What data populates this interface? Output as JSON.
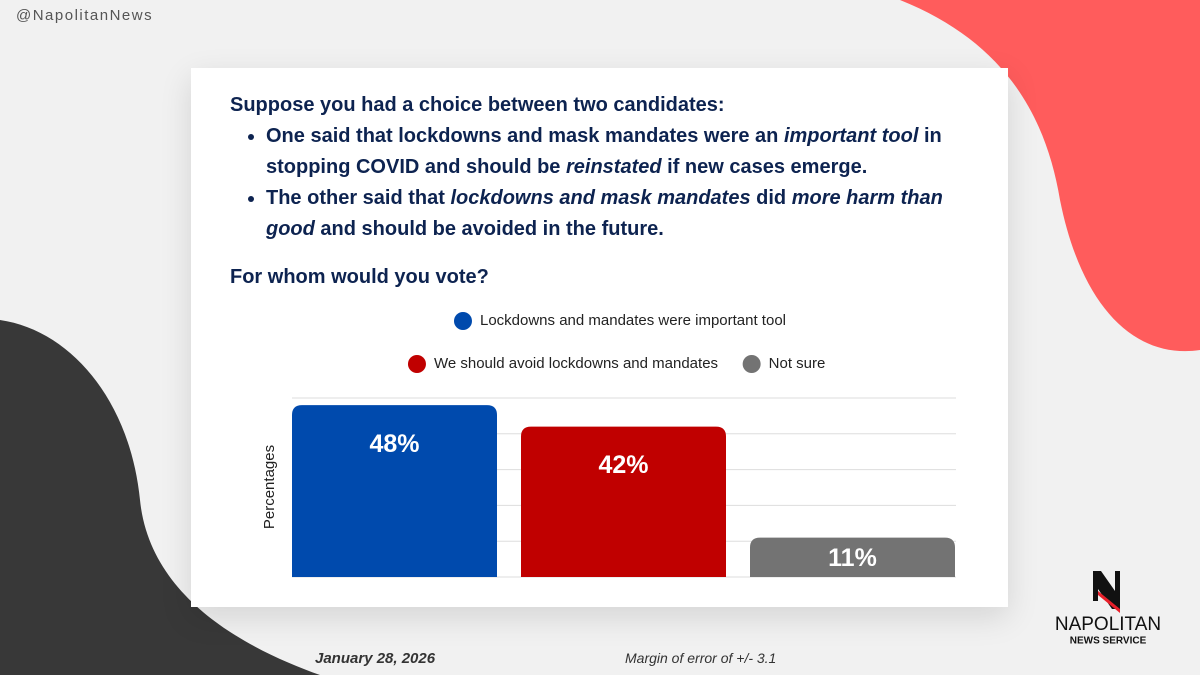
{
  "handle": "@NapolitanNews",
  "question": {
    "intro": "Suppose you had a choice between two candidates:",
    "bullets": [
      [
        {
          "text": "One said that lockdowns and mask mandates were an "
        },
        {
          "text": "important tool",
          "italic": true
        },
        {
          "text": " in stopping COVID and should be "
        },
        {
          "text": "reinstated",
          "italic": true
        },
        {
          "text": " if new cases emerge."
        }
      ],
      [
        {
          "text": "The other said that "
        },
        {
          "text": "lockdowns and mask mandates",
          "italic": true
        },
        {
          "text": " did "
        },
        {
          "text": "more harm than good",
          "italic": true
        },
        {
          "text": " and should be avoided in the future."
        }
      ]
    ],
    "prompt": "For whom would you vote?"
  },
  "chart_data": {
    "type": "bar",
    "categories": [
      "Lockdowns and mandates were important tool",
      "We should avoid lockdowns and mandates",
      "Not sure"
    ],
    "values": [
      48,
      42,
      11
    ],
    "value_labels": [
      "48%",
      "42%",
      "11%"
    ],
    "colors": [
      "#004aad",
      "#c00000",
      "#737373"
    ],
    "y_label": "Percentages",
    "ylim": [
      0,
      50
    ],
    "yticks": [
      0,
      10,
      20,
      30,
      40,
      50
    ],
    "grid": true
  },
  "footer": {
    "date": "January 28, 2026",
    "margin": "Margin of error of +/- 3.1"
  },
  "logo": {
    "name": "NAPOLITAN",
    "sub": "NEWS SERVICE"
  }
}
